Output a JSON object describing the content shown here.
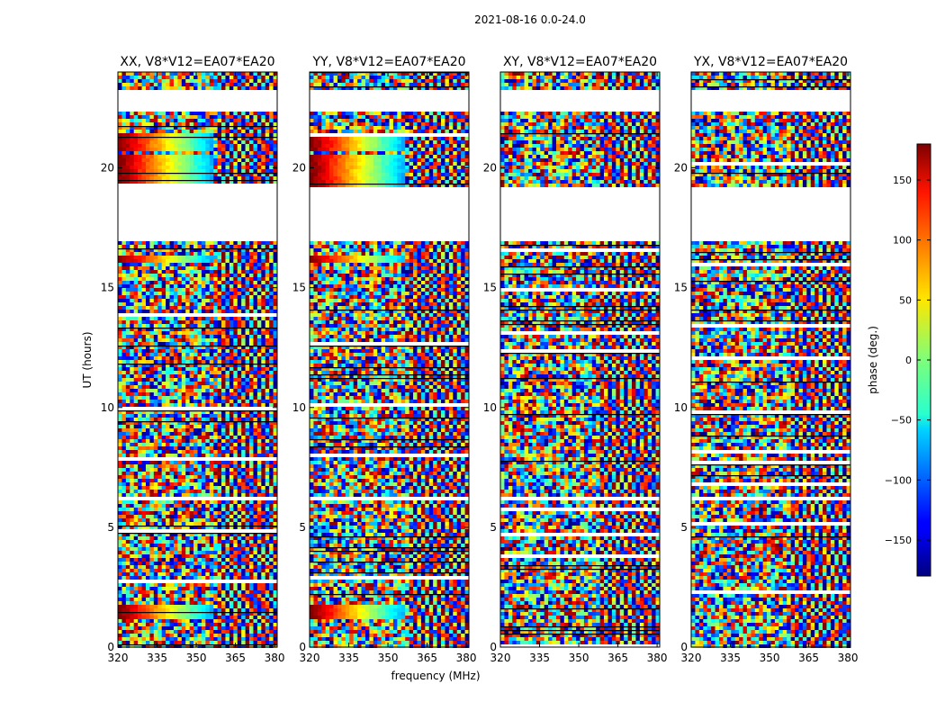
{
  "figure": {
    "suptitle": "2021-08-16 0.0-24.0",
    "xlabel": "frequency (MHz)",
    "ylabel": "UT (hours)",
    "colorbar_label": "phase (deg.)"
  },
  "chart_data": {
    "type": "heatmap",
    "title": "2021-08-16 0.0-24.0",
    "xlabel": "frequency (MHz)",
    "ylabel": "UT (hours)",
    "xlim": [
      320,
      381
    ],
    "ylim": [
      0,
      24
    ],
    "x_ticks": [
      320,
      335,
      350,
      365,
      380
    ],
    "y_ticks": [
      0,
      5,
      10,
      15,
      20
    ],
    "colormap": "jet",
    "colorbar": {
      "label": "phase (deg.)",
      "range": [
        -180,
        180
      ],
      "ticks": [
        150,
        100,
        50,
        0,
        -50,
        -100,
        -150
      ]
    },
    "panels": [
      {
        "title": "XX, V8*V12=EA07*EA20",
        "pol": "XX"
      },
      {
        "title": "YY, V8*V12=EA07*EA20",
        "pol": "YY"
      },
      {
        "title": "XY, V8*V12=EA07*EA20",
        "pol": "XY"
      },
      {
        "title": "YX, V8*V12=EA07*EA20",
        "pol": "YX"
      }
    ],
    "data_gaps_ut_hours": [
      [
        17.0,
        19.2
      ],
      [
        22.3,
        23.2
      ],
      [
        6.1,
        6.3
      ]
    ],
    "coherent_phase_bands_ut_hours": [
      [
        1.2,
        1.8
      ],
      [
        19.2,
        20.5
      ],
      [
        20.7,
        21.5
      ],
      [
        22.3,
        22.4
      ],
      [
        16.0,
        16.3
      ]
    ]
  }
}
